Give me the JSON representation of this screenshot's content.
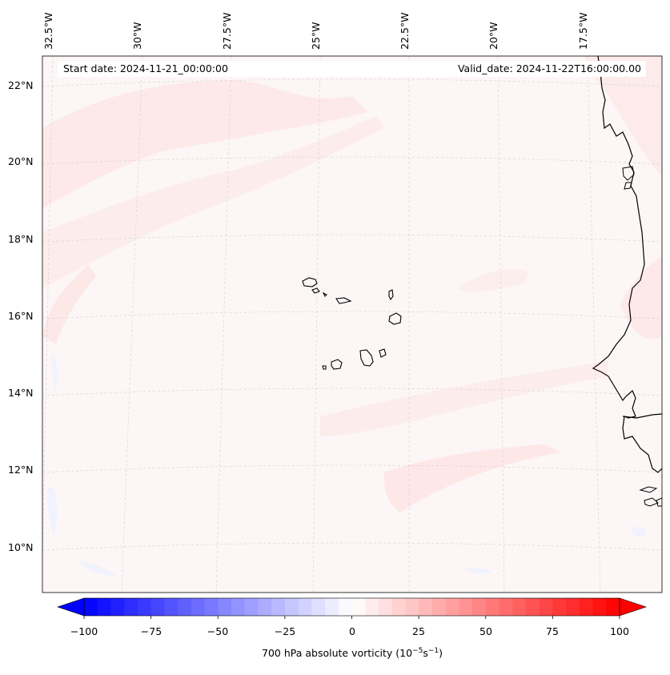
{
  "header": {
    "start_date": "Start date: 2024-11-21_00:00:00",
    "valid_date": "Valid_date: 2024-11-22T16:00:00.00"
  },
  "longitude_labels": [
    "32.5°W",
    "30°W",
    "27.5°W",
    "25°W",
    "22.5°W",
    "20°W",
    "17.5°W"
  ],
  "latitude_labels": [
    "22°N",
    "20°N",
    "18°N",
    "16°N",
    "14°N",
    "12°N",
    "10°N"
  ],
  "colorbar": {
    "ticks": [
      "−100",
      "−75",
      "−50",
      "−25",
      "0",
      "25",
      "50",
      "75",
      "100"
    ],
    "label": "700 hPa absolute vorticity (10",
    "label_exp1": "−5",
    "label_mid": "s",
    "label_exp2": "−1",
    "label_end": ")",
    "min": -100,
    "max": 100,
    "step": 5,
    "neg_color": "#0000ff",
    "zero_color": "#ffffff",
    "pos_color": "#ff0000",
    "extend": "both"
  },
  "colors": {
    "ocean_fill": "#fdf5f5",
    "light_band": "#fde6e6",
    "faint_blue": "#f2f4fd",
    "coastline": "#000000",
    "grid": "#cccccc"
  }
}
